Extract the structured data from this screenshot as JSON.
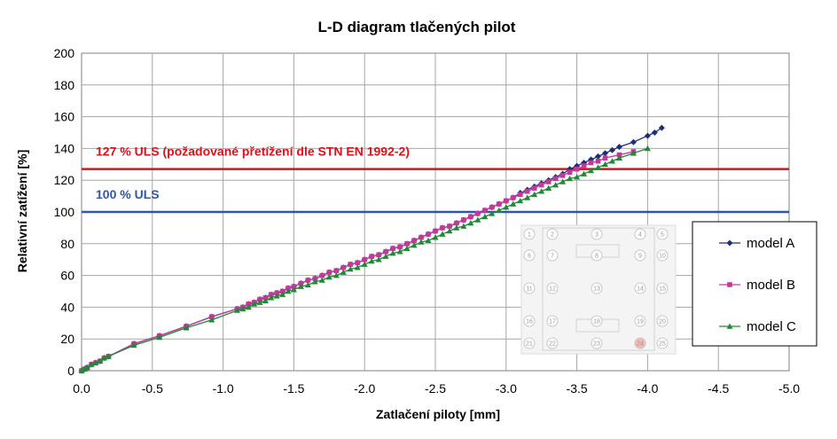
{
  "chart_data": {
    "type": "scatter",
    "title": "L-D diagram tlačených pilot",
    "xlabel": "Zatlačení piloty [mm]",
    "ylabel": "Relativní zatížení [%]",
    "xlim": [
      0,
      -5
    ],
    "ylim": [
      0,
      200
    ],
    "x_ticks": [
      "0.0",
      "-0.5",
      "-1.0",
      "-1.5",
      "-2.0",
      "-2.5",
      "-3.0",
      "-3.5",
      "-4.0",
      "-4.5",
      "-5.0"
    ],
    "x_tick_values": [
      0,
      -0.5,
      -1.0,
      -1.5,
      -2.0,
      -2.5,
      -3.0,
      -3.5,
      -4.0,
      -4.5,
      -5.0
    ],
    "y_ticks": [
      "0",
      "20",
      "40",
      "60",
      "80",
      "100",
      "120",
      "140",
      "160",
      "180",
      "200"
    ],
    "y_tick_values": [
      0,
      20,
      40,
      60,
      80,
      100,
      120,
      140,
      160,
      180,
      200
    ],
    "grid": true,
    "legend_position": "right",
    "reference_lines": [
      {
        "label": "127 % ULS (požadované přetížení dle STN EN 1992-2)",
        "y": 127,
        "color": "#e0101a"
      },
      {
        "label": "100 % ULS",
        "y": 100,
        "color": "#2f57a8"
      }
    ],
    "series": [
      {
        "name": "model A",
        "color": "#1e2f7a",
        "marker": "diamond",
        "x": [
          0,
          -0.02,
          -0.04,
          -0.07,
          -0.1,
          -0.13,
          -0.16,
          -0.19,
          -0.37,
          -0.55,
          -0.74,
          -0.92,
          -1.1,
          -1.14,
          -1.18,
          -1.22,
          -1.26,
          -1.3,
          -1.34,
          -1.38,
          -1.42,
          -1.46,
          -1.5,
          -1.55,
          -1.6,
          -1.65,
          -1.7,
          -1.75,
          -1.8,
          -1.85,
          -1.9,
          -1.95,
          -2.0,
          -2.05,
          -2.1,
          -2.15,
          -2.2,
          -2.25,
          -2.3,
          -2.35,
          -2.4,
          -2.45,
          -2.5,
          -2.55,
          -2.6,
          -2.65,
          -2.7,
          -2.75,
          -2.8,
          -2.85,
          -2.9,
          -2.95,
          -3.0,
          -3.05,
          -3.1,
          -3.15,
          -3.2,
          -3.25,
          -3.3,
          -3.35,
          -3.4,
          -3.45,
          -3.5,
          -3.55,
          -3.6,
          -3.65,
          -3.7,
          -3.75,
          -3.8,
          -3.9,
          -4.0,
          -4.05,
          -4.1
        ],
        "y": [
          0,
          1,
          2,
          4,
          5,
          6,
          8,
          9,
          17,
          22,
          28,
          34,
          39,
          40,
          42,
          43,
          45,
          46,
          48,
          49,
          50,
          52,
          53,
          55,
          57,
          58,
          60,
          62,
          63,
          65,
          67,
          68,
          70,
          72,
          73,
          75,
          77,
          78,
          80,
          82,
          84,
          86,
          88,
          90,
          91,
          93,
          95,
          97,
          99,
          101,
          103,
          105,
          107,
          109,
          112,
          114,
          116,
          118,
          120,
          122,
          124,
          127,
          129,
          131,
          133,
          135,
          137,
          139,
          141,
          144,
          148,
          150,
          153
        ]
      },
      {
        "name": "model B",
        "color": "#c2399a",
        "marker": "square",
        "x": [
          0,
          -0.02,
          -0.04,
          -0.07,
          -0.1,
          -0.13,
          -0.16,
          -0.19,
          -0.37,
          -0.55,
          -0.74,
          -0.92,
          -1.1,
          -1.14,
          -1.18,
          -1.22,
          -1.26,
          -1.3,
          -1.34,
          -1.38,
          -1.42,
          -1.46,
          -1.5,
          -1.55,
          -1.6,
          -1.65,
          -1.7,
          -1.75,
          -1.8,
          -1.85,
          -1.9,
          -1.95,
          -2.0,
          -2.05,
          -2.1,
          -2.15,
          -2.2,
          -2.25,
          -2.3,
          -2.35,
          -2.4,
          -2.45,
          -2.5,
          -2.55,
          -2.6,
          -2.65,
          -2.7,
          -2.75,
          -2.8,
          -2.85,
          -2.9,
          -2.95,
          -3.0,
          -3.05,
          -3.1,
          -3.15,
          -3.2,
          -3.25,
          -3.3,
          -3.35,
          -3.4,
          -3.45,
          -3.5,
          -3.55,
          -3.6,
          -3.65,
          -3.7,
          -3.8,
          -3.9
        ],
        "y": [
          0,
          1,
          2,
          4,
          5,
          6,
          8,
          9,
          17,
          22,
          28,
          34,
          39,
          40,
          42,
          43,
          45,
          46,
          48,
          49,
          50,
          52,
          53,
          55,
          57,
          58,
          60,
          62,
          63,
          65,
          67,
          68,
          70,
          72,
          73,
          75,
          77,
          78,
          80,
          82,
          84,
          86,
          88,
          90,
          91,
          93,
          95,
          97,
          99,
          101,
          103,
          105,
          107,
          109,
          111,
          113,
          115,
          117,
          119,
          121,
          123,
          125,
          127,
          129,
          131,
          132,
          134,
          136,
          138
        ]
      },
      {
        "name": "model C",
        "color": "#1f8a34",
        "marker": "triangle",
        "x": [
          0,
          -0.02,
          -0.04,
          -0.07,
          -0.1,
          -0.13,
          -0.16,
          -0.19,
          -0.37,
          -0.55,
          -0.74,
          -0.92,
          -1.1,
          -1.14,
          -1.18,
          -1.22,
          -1.26,
          -1.3,
          -1.34,
          -1.38,
          -1.42,
          -1.46,
          -1.5,
          -1.55,
          -1.6,
          -1.65,
          -1.7,
          -1.75,
          -1.8,
          -1.85,
          -1.9,
          -1.95,
          -2.0,
          -2.05,
          -2.1,
          -2.15,
          -2.2,
          -2.25,
          -2.3,
          -2.35,
          -2.4,
          -2.45,
          -2.5,
          -2.55,
          -2.6,
          -2.65,
          -2.7,
          -2.75,
          -2.8,
          -2.85,
          -2.9,
          -2.95,
          -3.0,
          -3.05,
          -3.1,
          -3.15,
          -3.2,
          -3.25,
          -3.3,
          -3.35,
          -3.4,
          -3.45,
          -3.5,
          -3.55,
          -3.6,
          -3.65,
          -3.7,
          -3.75,
          -3.8,
          -3.9,
          -4.0
        ],
        "y": [
          0,
          1,
          2,
          4,
          5,
          6,
          8,
          9,
          16,
          21,
          27,
          32,
          38,
          39,
          40,
          42,
          43,
          44,
          46,
          47,
          48,
          50,
          51,
          53,
          54,
          56,
          57,
          59,
          60,
          62,
          64,
          65,
          67,
          69,
          70,
          72,
          74,
          75,
          77,
          79,
          81,
          82,
          84,
          86,
          88,
          90,
          91,
          93,
          95,
          97,
          99,
          101,
          103,
          105,
          107,
          109,
          111,
          113,
          115,
          117,
          119,
          121,
          122,
          124,
          126,
          128,
          130,
          132,
          134,
          137,
          140
        ]
      }
    ],
    "inset": {
      "pile_labels": [
        "1",
        "2",
        "3",
        "4",
        "5",
        "6",
        "7",
        "8",
        "9",
        "10",
        "11",
        "12",
        "13",
        "14",
        "15",
        "16",
        "17",
        "18",
        "19",
        "20",
        "21",
        "22",
        "23",
        "24",
        "25"
      ],
      "highlighted_pile": "24"
    }
  }
}
